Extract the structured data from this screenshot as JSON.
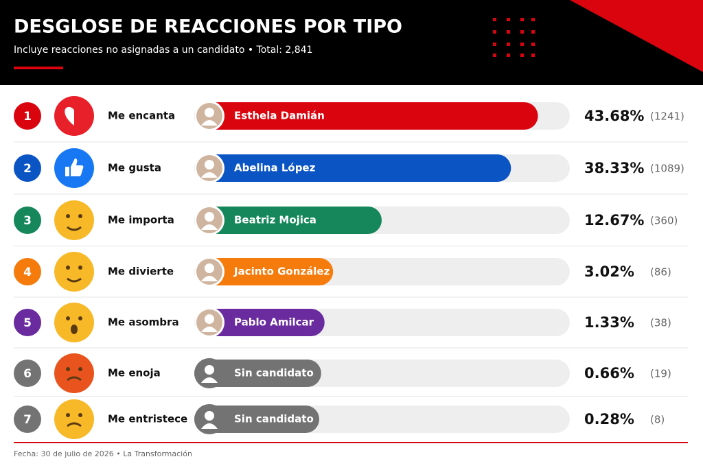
{
  "header": {
    "title": "DESGLOSE DE REACCIONES POR TIPO",
    "subtitle": "Incluye reacciones no asignadas a un candidato  •  Total: 2,841"
  },
  "rows": [
    {
      "rank": "1",
      "reaction": "Me encanta",
      "candidate": "Esthela Damián",
      "color": "#d9040e",
      "pct": {
        "value": 43.68,
        "label": "43.68%"
      },
      "count": {
        "value": 1241,
        "label": "(1241)"
      }
    },
    {
      "rank": "2",
      "reaction": "Me gusta",
      "candidate": "Abelina López",
      "color": "#0a54c4",
      "pct": {
        "value": 38.33,
        "label": "38.33%"
      },
      "count": {
        "value": 1089,
        "label": "(1089)"
      }
    },
    {
      "rank": "3",
      "reaction": "Me importa",
      "candidate": "Beatriz Mojica",
      "color": "#15875a",
      "pct": {
        "value": 12.67,
        "label": "12.67%"
      },
      "count": {
        "value": 360,
        "label": "(360)"
      }
    },
    {
      "rank": "4",
      "reaction": "Me divierte",
      "candidate": "Jacinto González",
      "color": "#f47b0c",
      "pct": {
        "value": 3.02,
        "label": "3.02%"
      },
      "count": {
        "value": 86,
        "label": "(86)"
      }
    },
    {
      "rank": "5",
      "reaction": "Me asombra",
      "candidate": "Pablo Amilcar",
      "color": "#6a2b9e",
      "pct": {
        "value": 1.33,
        "label": "1.33%"
      },
      "count": {
        "value": 38,
        "label": "(38)"
      }
    },
    {
      "rank": "6",
      "reaction": "Me enoja",
      "candidate": "Sin candidato",
      "color": "#737373",
      "pct": {
        "value": 0.66,
        "label": "0.66%"
      },
      "count": {
        "value": 19,
        "label": "(19)"
      }
    },
    {
      "rank": "7",
      "reaction": "Me entristece",
      "candidate": "Sin candidato",
      "color": "#737373",
      "pct": {
        "value": 0.28,
        "label": "0.28%"
      },
      "count": {
        "value": 8,
        "label": "(8)"
      }
    }
  ],
  "footer": "Fecha: 30 de julio de 2026  •  La Transformación"
}
